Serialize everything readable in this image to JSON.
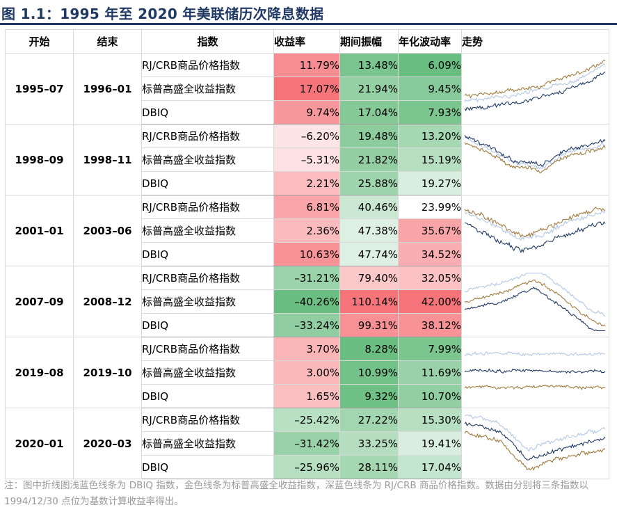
{
  "title": "图 1.1：1995 年至 2020 年美联储历次降息数据",
  "headers": {
    "start": "开始",
    "end": "结束",
    "index": "指数",
    "return": "收益率",
    "range": "期间振幅",
    "vol": "年化波动率",
    "trend": "走势"
  },
  "colors": {
    "gold_line": "#a07a3c",
    "navy_line": "#1f3864",
    "light_blue_line": "#b4c8e6",
    "red_max": "#f4646a",
    "green_max": "#5bb774",
    "header_rule": "#1f3864",
    "footnote": "#9a9a9a"
  },
  "groups": [
    {
      "start": "1995–07",
      "end": "1996–01",
      "rows": [
        {
          "index": "RJ/CRB商品价格指数",
          "return": "11.79%",
          "range": "13.48%",
          "vol": "6.09%"
        },
        {
          "index": "标普高盛全收益指数",
          "return": "17.07%",
          "range": "21.94%",
          "vol": "9.45%"
        },
        {
          "index": "DBIQ",
          "return": "9.74%",
          "range": "17.04%",
          "vol": "7.93%"
        }
      ]
    },
    {
      "start": "1998–09",
      "end": "1998–11",
      "rows": [
        {
          "index": "RJ/CRB商品价格指数",
          "return": "–6.20%",
          "range": "19.48%",
          "vol": "13.20%"
        },
        {
          "index": "标普高盛全收益指数",
          "return": "–5.31%",
          "range": "21.82%",
          "vol": "15.19%"
        },
        {
          "index": "DBIQ",
          "return": "2.21%",
          "range": "25.88%",
          "vol": "19.27%"
        }
      ]
    },
    {
      "start": "2001–01",
      "end": "2003–06",
      "rows": [
        {
          "index": "RJ/CRB商品价格指数",
          "return": "6.81%",
          "range": "40.46%",
          "vol": "23.99%"
        },
        {
          "index": "标普高盛全收益指数",
          "return": "2.36%",
          "range": "47.38%",
          "vol": "35.67%"
        },
        {
          "index": "DBIQ",
          "return": "10.63%",
          "range": "47.74%",
          "vol": "34.52%"
        }
      ]
    },
    {
      "start": "2007–09",
      "end": "2008–12",
      "rows": [
        {
          "index": "RJ/CRB商品价格指数",
          "return": "–31.21%",
          "range": "79.40%",
          "vol": "32.05%"
        },
        {
          "index": "标普高盛全收益指数",
          "return": "–40.26%",
          "range": "110.14%",
          "vol": "42.00%"
        },
        {
          "index": "DBIQ",
          "return": "–33.24%",
          "range": "99.31%",
          "vol": "38.12%"
        }
      ]
    },
    {
      "start": "2019–08",
      "end": "2019–10",
      "rows": [
        {
          "index": "RJ/CRB商品价格指数",
          "return": "3.70%",
          "range": "8.28%",
          "vol": "7.99%"
        },
        {
          "index": "标普高盛全收益指数",
          "return": "3.00%",
          "range": "10.99%",
          "vol": "11.69%"
        },
        {
          "index": "DBIQ",
          "return": "1.65%",
          "range": "9.32%",
          "vol": "10.70%"
        }
      ]
    },
    {
      "start": "2020–01",
      "end": "2020–03",
      "rows": [
        {
          "index": "RJ/CRB商品价格指数",
          "return": "–25.42%",
          "range": "27.22%",
          "vol": "15.30%"
        },
        {
          "index": "标普高盛全收益指数",
          "return": "–31.42%",
          "range": "33.25%",
          "vol": "19.41%"
        },
        {
          "index": "DBIQ",
          "return": "–25.96%",
          "range": "28.11%",
          "vol": "17.04%"
        }
      ]
    }
  ],
  "footnote": "注：图中折线图浅蓝色线条为 DBIQ 指数，金色线条为标普高盛全收益指数，深蓝色线条为 RJ/CRB 商品价格指数。数据由分别将三条指数以 1994/12/30 点位为基数计算收益率得出。"
}
